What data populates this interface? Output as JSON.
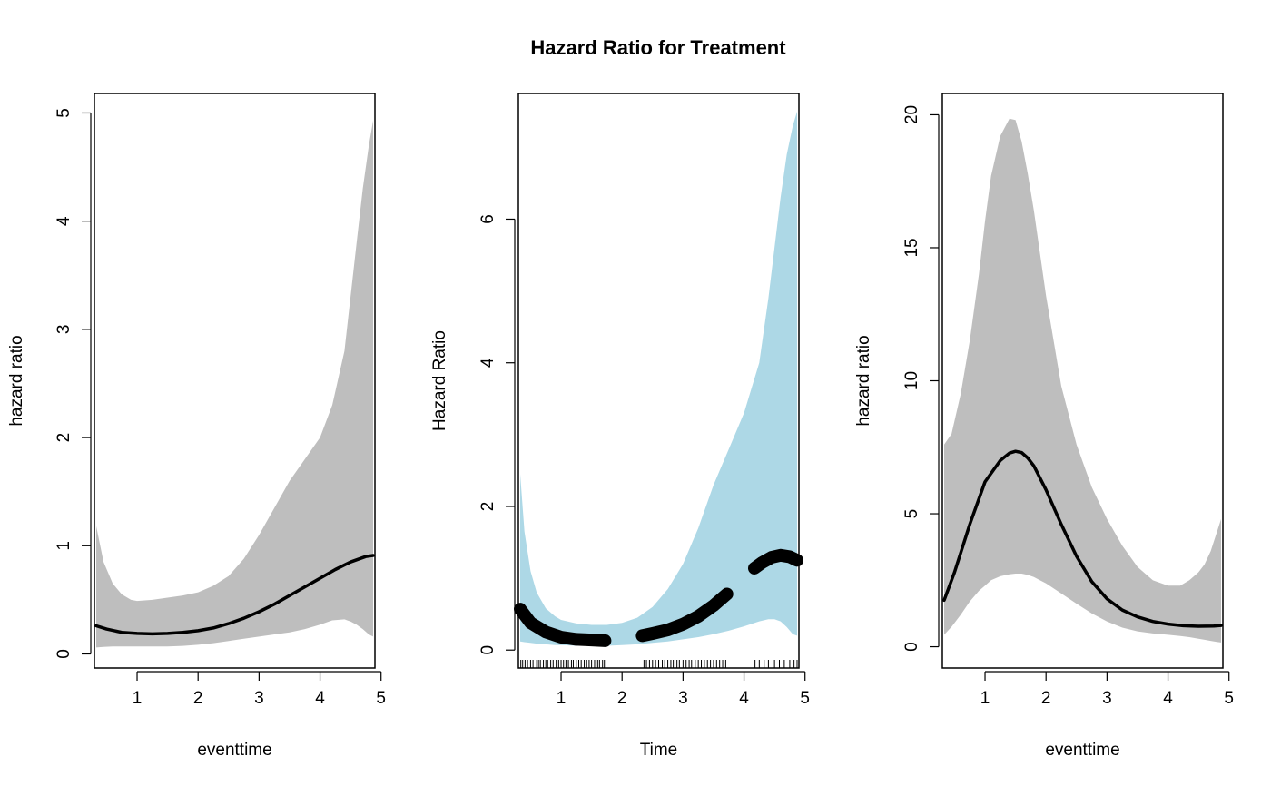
{
  "figure": {
    "title": "Hazard Ratio for Treatment"
  },
  "chart_data": [
    {
      "type": "line",
      "title": "",
      "xlabel": "eventtime",
      "ylabel": "hazard ratio",
      "xlim": [
        0.3,
        4.9
      ],
      "ylim": [
        -0.13,
        5.18
      ],
      "xticks": [
        1,
        2,
        3,
        4,
        5
      ],
      "yticks": [
        0,
        1,
        2,
        3,
        4,
        5
      ],
      "grid": false,
      "band_color": "#bebebe",
      "line_color": "#000000",
      "series": [
        {
          "kind": "line",
          "x": [
            0.33,
            0.5,
            0.75,
            1.0,
            1.25,
            1.5,
            1.75,
            2.0,
            2.25,
            2.5,
            2.75,
            3.0,
            3.25,
            3.5,
            3.75,
            4.0,
            4.25,
            4.5,
            4.75,
            4.87
          ],
          "y": [
            0.26,
            0.23,
            0.2,
            0.19,
            0.185,
            0.19,
            0.2,
            0.215,
            0.24,
            0.28,
            0.33,
            0.39,
            0.46,
            0.54,
            0.62,
            0.7,
            0.78,
            0.85,
            0.9,
            0.91
          ]
        },
        {
          "kind": "band",
          "x": [
            0.33,
            0.45,
            0.6,
            0.75,
            0.9,
            1.0,
            1.25,
            1.5,
            1.75,
            2.0,
            2.25,
            2.5,
            2.75,
            3.0,
            3.25,
            3.5,
            3.75,
            4.0,
            4.2,
            4.4,
            4.5,
            4.6,
            4.7,
            4.8,
            4.87
          ],
          "lower": [
            0.06,
            0.065,
            0.07,
            0.07,
            0.07,
            0.07,
            0.07,
            0.07,
            0.075,
            0.085,
            0.1,
            0.12,
            0.14,
            0.16,
            0.18,
            0.2,
            0.23,
            0.27,
            0.31,
            0.32,
            0.3,
            0.27,
            0.23,
            0.18,
            0.16
          ],
          "upper": [
            1.18,
            0.85,
            0.65,
            0.55,
            0.5,
            0.49,
            0.5,
            0.52,
            0.54,
            0.57,
            0.63,
            0.72,
            0.88,
            1.1,
            1.35,
            1.6,
            1.8,
            2.0,
            2.3,
            2.8,
            3.3,
            3.8,
            4.3,
            4.7,
            4.93
          ]
        }
      ]
    },
    {
      "type": "line",
      "title": "",
      "xlabel": "Time",
      "ylabel": "Hazard Ratio",
      "xlim": [
        0.3,
        4.9
      ],
      "ylim": [
        -0.25,
        7.75
      ],
      "xticks": [
        1,
        2,
        3,
        4,
        5
      ],
      "yticks": [
        0,
        2,
        4,
        6
      ],
      "grid": false,
      "band_color": "#add8e6",
      "line_color": "#000000",
      "series": [
        {
          "kind": "band",
          "x": [
            0.33,
            0.4,
            0.5,
            0.6,
            0.75,
            0.9,
            1.0,
            1.25,
            1.5,
            1.75,
            2.0,
            2.25,
            2.5,
            2.75,
            3.0,
            3.25,
            3.5,
            3.75,
            4.0,
            4.25,
            4.4,
            4.5,
            4.6,
            4.7,
            4.8,
            4.87
          ],
          "lower": [
            0.12,
            0.11,
            0.1,
            0.09,
            0.08,
            0.07,
            0.07,
            0.06,
            0.06,
            0.06,
            0.07,
            0.08,
            0.1,
            0.12,
            0.15,
            0.18,
            0.22,
            0.27,
            0.33,
            0.4,
            0.43,
            0.43,
            0.4,
            0.32,
            0.22,
            0.2
          ],
          "upper": [
            2.45,
            1.65,
            1.1,
            0.8,
            0.58,
            0.47,
            0.42,
            0.37,
            0.35,
            0.35,
            0.38,
            0.45,
            0.6,
            0.85,
            1.2,
            1.7,
            2.3,
            2.8,
            3.3,
            4.0,
            4.9,
            5.6,
            6.3,
            6.9,
            7.3,
            7.5
          ]
        },
        {
          "kind": "segment",
          "x": [
            0.33,
            0.5,
            0.75,
            1.0,
            1.25,
            1.5,
            1.72
          ],
          "y": [
            0.57,
            0.38,
            0.25,
            0.18,
            0.15,
            0.14,
            0.13
          ]
        },
        {
          "kind": "segment",
          "x": [
            2.33,
            2.5,
            2.75,
            3.0,
            3.25,
            3.5,
            3.72
          ],
          "y": [
            0.2,
            0.23,
            0.28,
            0.36,
            0.47,
            0.62,
            0.78
          ]
        },
        {
          "kind": "segment",
          "x": [
            4.17,
            4.3,
            4.45,
            4.6,
            4.75,
            4.87
          ],
          "y": [
            1.14,
            1.22,
            1.29,
            1.32,
            1.3,
            1.25
          ]
        },
        {
          "kind": "rug",
          "x": [
            0.34,
            0.37,
            0.41,
            0.45,
            0.5,
            0.54,
            0.6,
            0.63,
            0.66,
            0.71,
            0.75,
            0.78,
            0.83,
            0.87,
            0.92,
            0.96,
            1.0,
            1.04,
            1.08,
            1.12,
            1.17,
            1.2,
            1.25,
            1.29,
            1.33,
            1.38,
            1.42,
            1.46,
            1.5,
            1.55,
            1.6,
            1.63,
            1.68,
            1.71,
            2.36,
            2.4,
            2.45,
            2.5,
            2.55,
            2.6,
            2.66,
            2.7,
            2.75,
            2.8,
            2.84,
            2.9,
            2.94,
            3.0,
            3.05,
            3.1,
            3.14,
            3.2,
            3.25,
            3.3,
            3.35,
            3.4,
            3.45,
            3.5,
            3.55,
            3.6,
            3.65,
            3.7,
            4.18,
            4.25,
            4.33,
            4.4,
            4.5,
            4.58,
            4.66,
            4.75,
            4.82,
            4.87
          ]
        }
      ]
    },
    {
      "type": "line",
      "title": "",
      "xlabel": "eventtime",
      "ylabel": "hazard ratio",
      "xlim": [
        0.3,
        4.9
      ],
      "ylim": [
        -0.8,
        20.8
      ],
      "xticks": [
        1,
        2,
        3,
        4,
        5
      ],
      "yticks": [
        0,
        5,
        10,
        15,
        20
      ],
      "grid": false,
      "band_color": "#bebebe",
      "line_color": "#000000",
      "series": [
        {
          "kind": "line",
          "x": [
            0.33,
            0.5,
            0.75,
            1.0,
            1.25,
            1.4,
            1.5,
            1.6,
            1.7,
            1.8,
            2.0,
            2.25,
            2.5,
            2.75,
            3.0,
            3.25,
            3.5,
            3.75,
            4.0,
            4.25,
            4.5,
            4.75,
            4.87
          ],
          "y": [
            1.75,
            2.8,
            4.6,
            6.2,
            7.0,
            7.28,
            7.35,
            7.3,
            7.1,
            6.8,
            5.9,
            4.6,
            3.4,
            2.45,
            1.8,
            1.38,
            1.12,
            0.95,
            0.85,
            0.79,
            0.77,
            0.78,
            0.8
          ]
        },
        {
          "kind": "band",
          "x": [
            0.33,
            0.45,
            0.6,
            0.75,
            0.9,
            1.0,
            1.1,
            1.25,
            1.4,
            1.5,
            1.6,
            1.7,
            1.8,
            2.0,
            2.25,
            2.5,
            2.75,
            3.0,
            3.25,
            3.5,
            3.75,
            4.0,
            4.2,
            4.35,
            4.5,
            4.6,
            4.7,
            4.8,
            4.87
          ],
          "lower": [
            0.45,
            0.75,
            1.2,
            1.7,
            2.1,
            2.3,
            2.5,
            2.65,
            2.72,
            2.75,
            2.75,
            2.7,
            2.62,
            2.38,
            2.0,
            1.62,
            1.25,
            0.95,
            0.72,
            0.58,
            0.5,
            0.45,
            0.4,
            0.36,
            0.3,
            0.26,
            0.22,
            0.18,
            0.16
          ],
          "upper": [
            7.6,
            8.0,
            9.5,
            11.5,
            14.0,
            16.0,
            17.7,
            19.2,
            19.85,
            19.8,
            19.0,
            17.8,
            16.4,
            13.2,
            9.8,
            7.6,
            6.0,
            4.8,
            3.8,
            3.0,
            2.5,
            2.3,
            2.3,
            2.5,
            2.8,
            3.1,
            3.6,
            4.3,
            4.8
          ]
        }
      ]
    }
  ]
}
